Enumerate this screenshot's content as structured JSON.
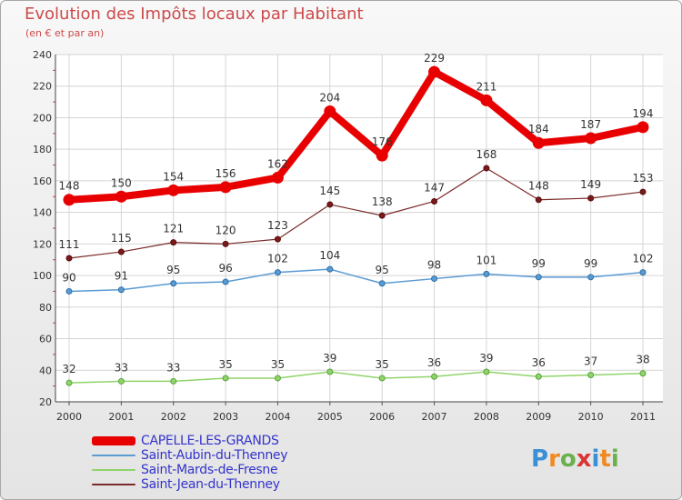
{
  "title": "Evolution des Impôts locaux par Habitant",
  "subtitle": "(en € et par an)",
  "logo": {
    "letters": [
      "P",
      "r",
      "o",
      "x",
      "i",
      "t",
      "i"
    ],
    "colors": [
      "#3a8fd6",
      "#f08a24",
      "#6ab04c",
      "#d93636",
      "#3a8fd6",
      "#f08a24",
      "#6ab04c"
    ]
  },
  "chart_data": {
    "type": "line",
    "title": "Evolution des Impôts locaux par Habitant",
    "subtitle": "(en € et par an)",
    "xlabel": "",
    "ylabel": "",
    "categories": [
      "2000",
      "2001",
      "2002",
      "2003",
      "2004",
      "2005",
      "2006",
      "2007",
      "2008",
      "2009",
      "2010",
      "2011"
    ],
    "ylim": [
      20,
      240
    ],
    "yticks": [
      20,
      40,
      60,
      80,
      100,
      120,
      140,
      160,
      180,
      200,
      220,
      240
    ],
    "grid": true,
    "legend_position": "bottom-left",
    "series": [
      {
        "name": "CAPELLE-LES-GRANDS",
        "color": "#e80000",
        "width": 8,
        "marker_fill": "#e80000",
        "marker_stroke": "#e80000",
        "values": [
          148,
          150,
          154,
          156,
          162,
          204,
          176,
          229,
          211,
          184,
          187,
          194
        ],
        "labels": [
          "148",
          "150",
          "154",
          "156",
          "162",
          "204",
          "176",
          "229",
          "211",
          "184",
          "187",
          "194"
        ]
      },
      {
        "name": "Saint-Aubin-du-Thenney",
        "color": "#5a9bd3",
        "width": 1.5,
        "marker_fill": "#5a9bd3",
        "marker_stroke": "#2f6fa8",
        "values": [
          90,
          91,
          95,
          96,
          102,
          104,
          95,
          98,
          101,
          99,
          99,
          102
        ],
        "labels": [
          "90",
          "91",
          "95",
          "96",
          "102",
          "104",
          "95",
          "98",
          "101",
          "99",
          "99",
          "102"
        ]
      },
      {
        "name": "Saint-Mards-de-Fresne",
        "color": "#8fd46a",
        "width": 1.5,
        "marker_fill": "#8fd46a",
        "marker_stroke": "#5aa23a",
        "values": [
          32,
          33,
          33,
          35,
          35,
          39,
          35,
          36,
          39,
          36,
          37,
          38
        ],
        "labels": [
          "32",
          "33",
          "33",
          "35",
          "35",
          "39",
          "35",
          "36",
          "39",
          "36",
          "37",
          "38"
        ]
      },
      {
        "name": "Saint-Jean-du-Thenney",
        "color": "#7a2a2a",
        "width": 1.2,
        "marker_fill": "#7a1a1a",
        "marker_stroke": "#5a0e0e",
        "values": [
          111,
          115,
          121,
          120,
          123,
          145,
          138,
          147,
          168,
          148,
          149,
          153
        ],
        "labels": [
          "111",
          "115",
          "121",
          "120",
          "123",
          "145",
          "138",
          "147",
          "168",
          "148",
          "149",
          "153"
        ]
      }
    ]
  }
}
